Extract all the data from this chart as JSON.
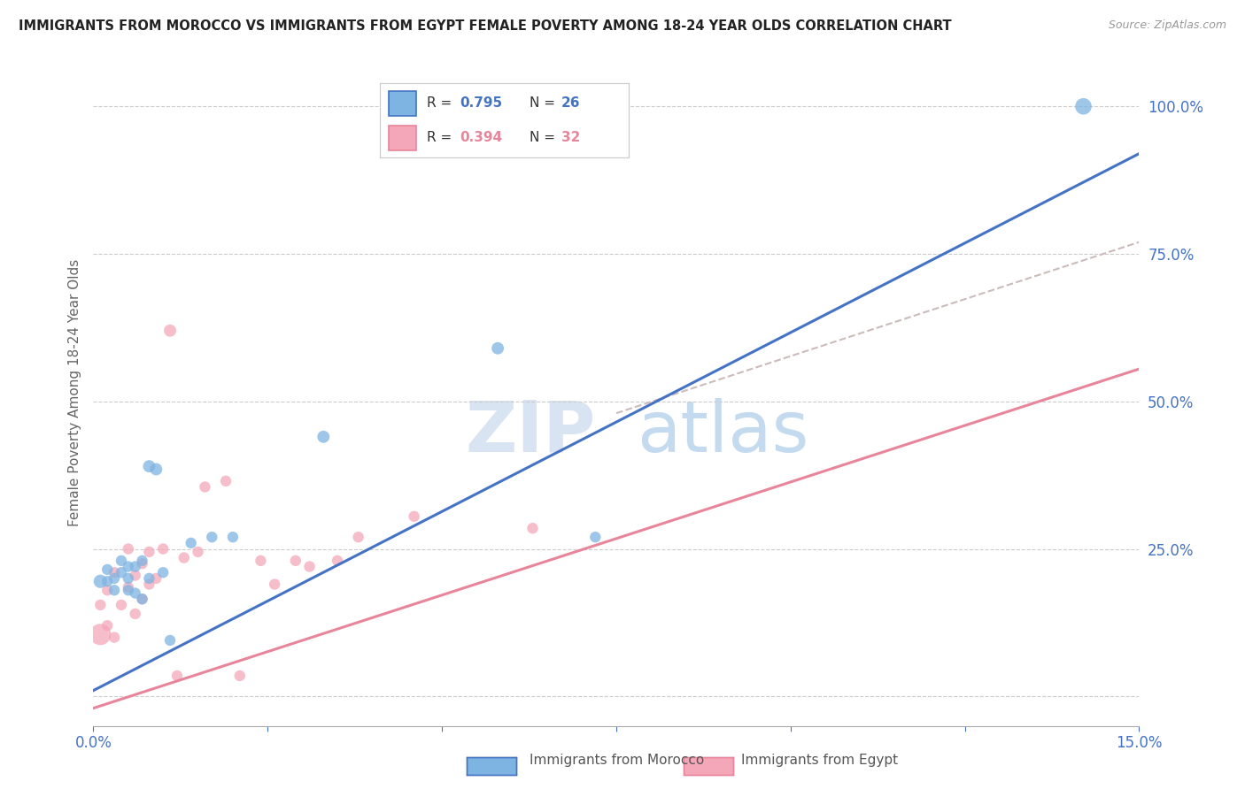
{
  "title": "IMMIGRANTS FROM MOROCCO VS IMMIGRANTS FROM EGYPT FEMALE POVERTY AMONG 18-24 YEAR OLDS CORRELATION CHART",
  "source": "Source: ZipAtlas.com",
  "ylabel": "Female Poverty Among 18-24 Year Olds",
  "xlim": [
    0.0,
    0.15
  ],
  "ylim": [
    -0.05,
    1.08
  ],
  "y_ticks": [
    0.0,
    0.25,
    0.5,
    0.75,
    1.0
  ],
  "y_tick_labels": [
    "",
    "25.0%",
    "50.0%",
    "75.0%",
    "100.0%"
  ],
  "morocco_color": "#7eb4e2",
  "egypt_color": "#f4a7b9",
  "morocco_R": 0.795,
  "morocco_N": 26,
  "egypt_R": 0.394,
  "egypt_N": 32,
  "morocco_line_color": "#4472c4",
  "egypt_line_color": "#e8859a",
  "dashed_line_color": "#ccbbbb",
  "watermark": "ZIPAtlas",
  "background_color": "#ffffff",
  "morocco_line_x0": 0.0,
  "morocco_line_y0": 0.01,
  "morocco_line_x1": 0.15,
  "morocco_line_y1": 0.92,
  "egypt_line_x0": 0.0,
  "egypt_line_y0": -0.02,
  "egypt_line_x1": 0.15,
  "egypt_line_y1": 0.555,
  "dashed_line_x0": 0.075,
  "dashed_line_y0": 0.48,
  "dashed_line_x1": 0.15,
  "dashed_line_y1": 0.77,
  "morocco_scatter_x": [
    0.001,
    0.002,
    0.002,
    0.003,
    0.003,
    0.004,
    0.004,
    0.005,
    0.005,
    0.005,
    0.006,
    0.006,
    0.007,
    0.007,
    0.008,
    0.008,
    0.009,
    0.01,
    0.011,
    0.014,
    0.017,
    0.02,
    0.033,
    0.058,
    0.072,
    0.142
  ],
  "morocco_scatter_y": [
    0.195,
    0.215,
    0.195,
    0.18,
    0.2,
    0.21,
    0.23,
    0.18,
    0.22,
    0.2,
    0.175,
    0.22,
    0.165,
    0.23,
    0.39,
    0.2,
    0.385,
    0.21,
    0.095,
    0.26,
    0.27,
    0.27,
    0.44,
    0.59,
    0.27,
    1.0
  ],
  "morocco_scatter_sizes": [
    120,
    80,
    80,
    80,
    80,
    80,
    80,
    80,
    80,
    80,
    80,
    80,
    80,
    80,
    100,
    80,
    100,
    80,
    80,
    80,
    80,
    80,
    100,
    100,
    80,
    180
  ],
  "egypt_scatter_x": [
    0.001,
    0.001,
    0.002,
    0.002,
    0.003,
    0.003,
    0.004,
    0.005,
    0.005,
    0.006,
    0.006,
    0.007,
    0.007,
    0.008,
    0.008,
    0.009,
    0.01,
    0.011,
    0.012,
    0.013,
    0.015,
    0.016,
    0.019,
    0.021,
    0.024,
    0.026,
    0.029,
    0.031,
    0.035,
    0.038,
    0.046,
    0.063
  ],
  "egypt_scatter_y": [
    0.105,
    0.155,
    0.12,
    0.18,
    0.1,
    0.21,
    0.155,
    0.185,
    0.25,
    0.14,
    0.205,
    0.165,
    0.225,
    0.19,
    0.245,
    0.2,
    0.25,
    0.62,
    0.035,
    0.235,
    0.245,
    0.355,
    0.365,
    0.035,
    0.23,
    0.19,
    0.23,
    0.22,
    0.23,
    0.27,
    0.305,
    0.285
  ],
  "egypt_scatter_sizes": [
    300,
    80,
    80,
    80,
    80,
    80,
    80,
    80,
    80,
    80,
    80,
    80,
    80,
    80,
    80,
    80,
    80,
    100,
    80,
    80,
    80,
    80,
    80,
    80,
    80,
    80,
    80,
    80,
    80,
    80,
    80,
    80
  ]
}
